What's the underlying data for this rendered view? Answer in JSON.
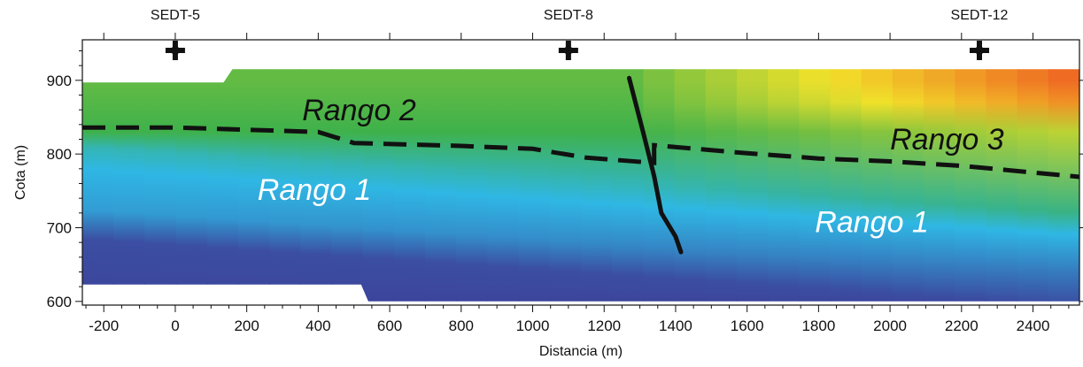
{
  "chart_data": {
    "type": "heatmap",
    "xlabel": "Distancia (m)",
    "ylabel": "Cota (m)",
    "xlim": [
      -260,
      2530
    ],
    "ylim": [
      595,
      955
    ],
    "xticks": [
      "-200",
      "0",
      "200",
      "400",
      "600",
      "800",
      "1000",
      "1200",
      "1400",
      "1600",
      "1800",
      "2000",
      "2200",
      "2400"
    ],
    "yticks": [
      "600",
      "700",
      "800",
      "900"
    ],
    "grid": false,
    "wells": [
      {
        "name": "SEDT-5",
        "x": 0
      },
      {
        "name": "SEDT-8",
        "x": 1100
      },
      {
        "name": "SEDT-12",
        "x": 2250
      }
    ],
    "section_top": [
      [
        -260,
        897
      ],
      [
        135,
        897
      ],
      [
        160,
        915
      ],
      [
        2530,
        915
      ]
    ],
    "section_bottom": [
      [
        -260,
        623
      ],
      [
        520,
        623
      ],
      [
        540,
        600
      ],
      [
        2530,
        600
      ]
    ],
    "color_scale": [
      "#3d3a95",
      "#2fb7e4",
      "#3fb14b",
      "#f2e22a",
      "#ee5221"
    ],
    "boundary_dashed": [
      [
        -260,
        836
      ],
      [
        0,
        836
      ],
      [
        400,
        830
      ],
      [
        500,
        815
      ],
      [
        800,
        811
      ],
      [
        1000,
        807
      ],
      [
        1150,
        795
      ],
      [
        1340,
        788
      ],
      [
        1340,
        812
      ],
      [
        1600,
        801
      ],
      [
        1800,
        794
      ],
      [
        2000,
        790
      ],
      [
        2200,
        784
      ],
      [
        2530,
        769
      ]
    ],
    "fault_line": [
      [
        1270,
        903
      ],
      [
        1310,
        828
      ],
      [
        1340,
        770
      ],
      [
        1360,
        720
      ],
      [
        1400,
        688
      ],
      [
        1415,
        667
      ]
    ],
    "region_labels": [
      {
        "text": "Rango 2",
        "x": 355,
        "y": 846,
        "color": "#111111"
      },
      {
        "text": "Rango 3",
        "x": 2000,
        "y": 806,
        "color": "#111111"
      },
      {
        "text": "Rango 1",
        "x": 230,
        "y": 738,
        "color": "#ffffff"
      },
      {
        "text": "Rango 1",
        "x": 1790,
        "y": 694,
        "color": "#ffffff"
      }
    ]
  }
}
